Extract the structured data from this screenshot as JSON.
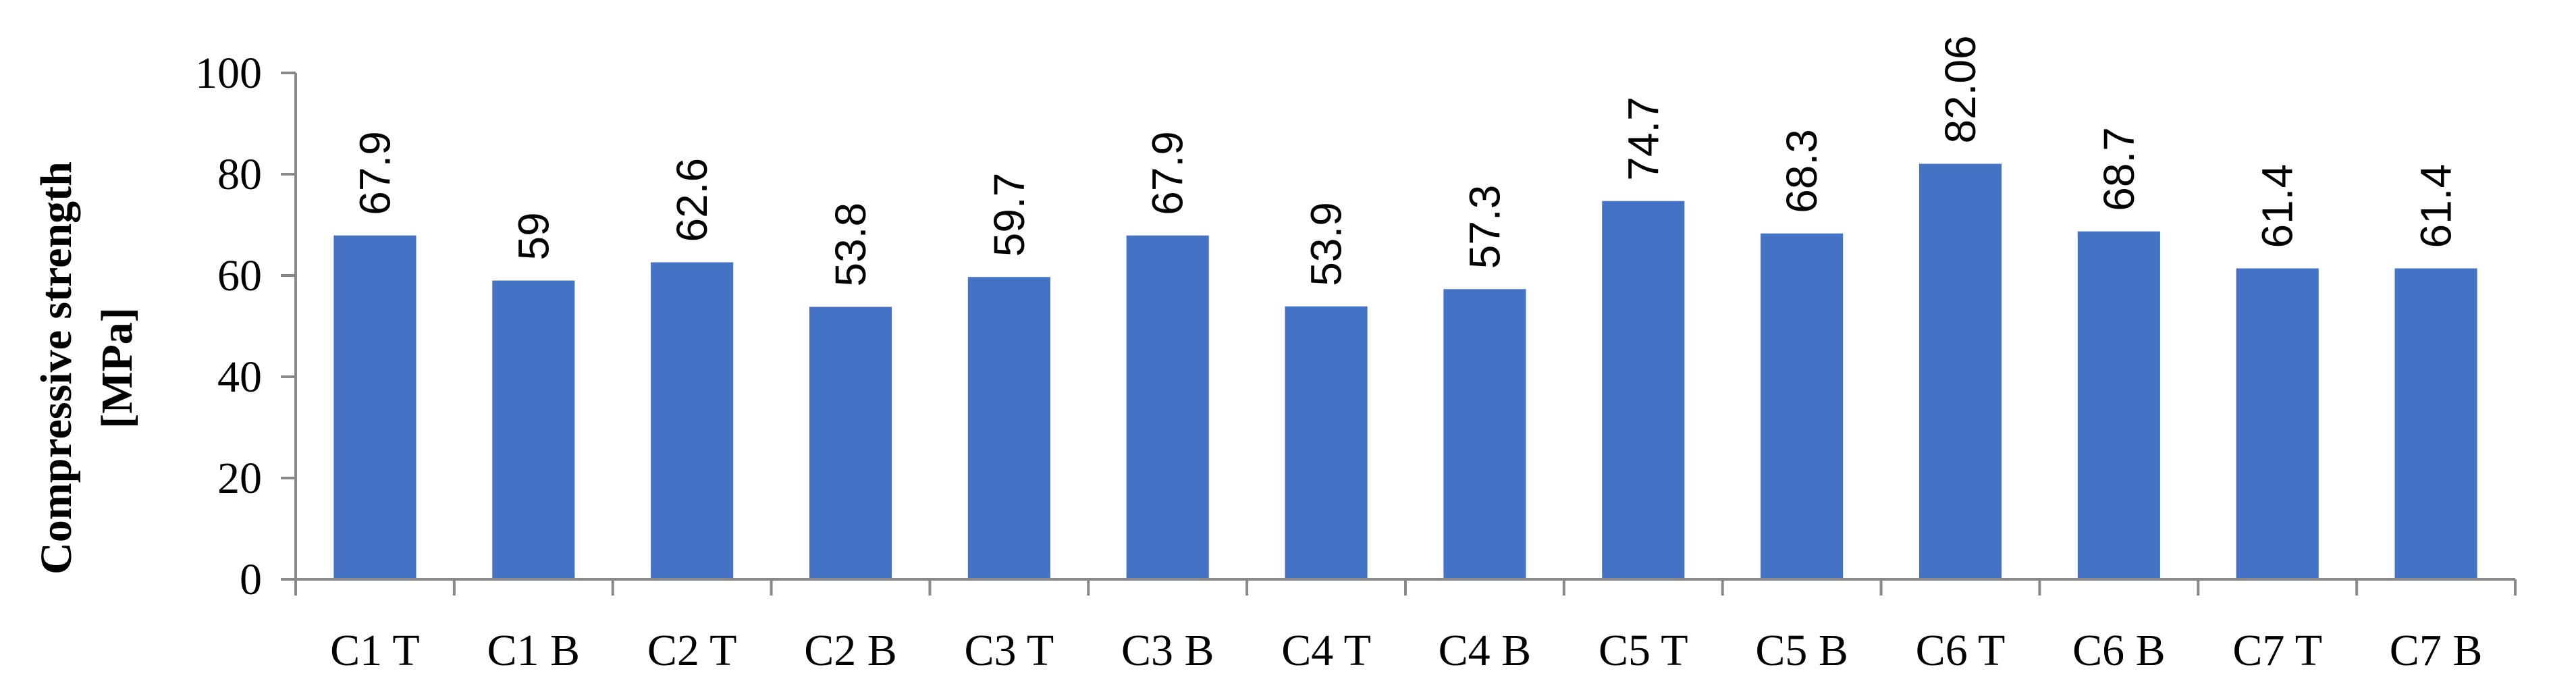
{
  "chart_data": {
    "type": "bar",
    "categories": [
      "C1 T",
      "C1 B",
      "C2 T",
      "C2 B",
      "C3 T",
      "C3 B",
      "C4 T",
      "C4 B",
      "C5 T",
      "C5 B",
      "C6 T",
      "C6 B",
      "C7 T",
      "C7 B"
    ],
    "values": [
      67.9,
      59,
      62.6,
      53.8,
      59.7,
      67.9,
      53.9,
      57.3,
      74.7,
      68.3,
      82.06,
      68.7,
      61.4,
      61.4
    ],
    "data_labels": [
      "67.9",
      "59",
      "62.6",
      "53.8",
      "59.7",
      "67.9",
      "53.9",
      "57.3",
      "74.7",
      "68.3",
      "82.06",
      "68.7",
      "61.4",
      "61.4"
    ],
    "ylabel_lines": [
      "Compressive strength",
      "[MPa]"
    ],
    "xlabel": "",
    "title": "",
    "ylim": [
      0,
      100
    ],
    "yticks": [
      0,
      20,
      40,
      60,
      80,
      100
    ],
    "ytick_labels": [
      "0",
      "20",
      "40",
      "60",
      "80",
      "100"
    ],
    "grid": false,
    "bar_color": "#4472C4",
    "axis_color": "#898989"
  }
}
